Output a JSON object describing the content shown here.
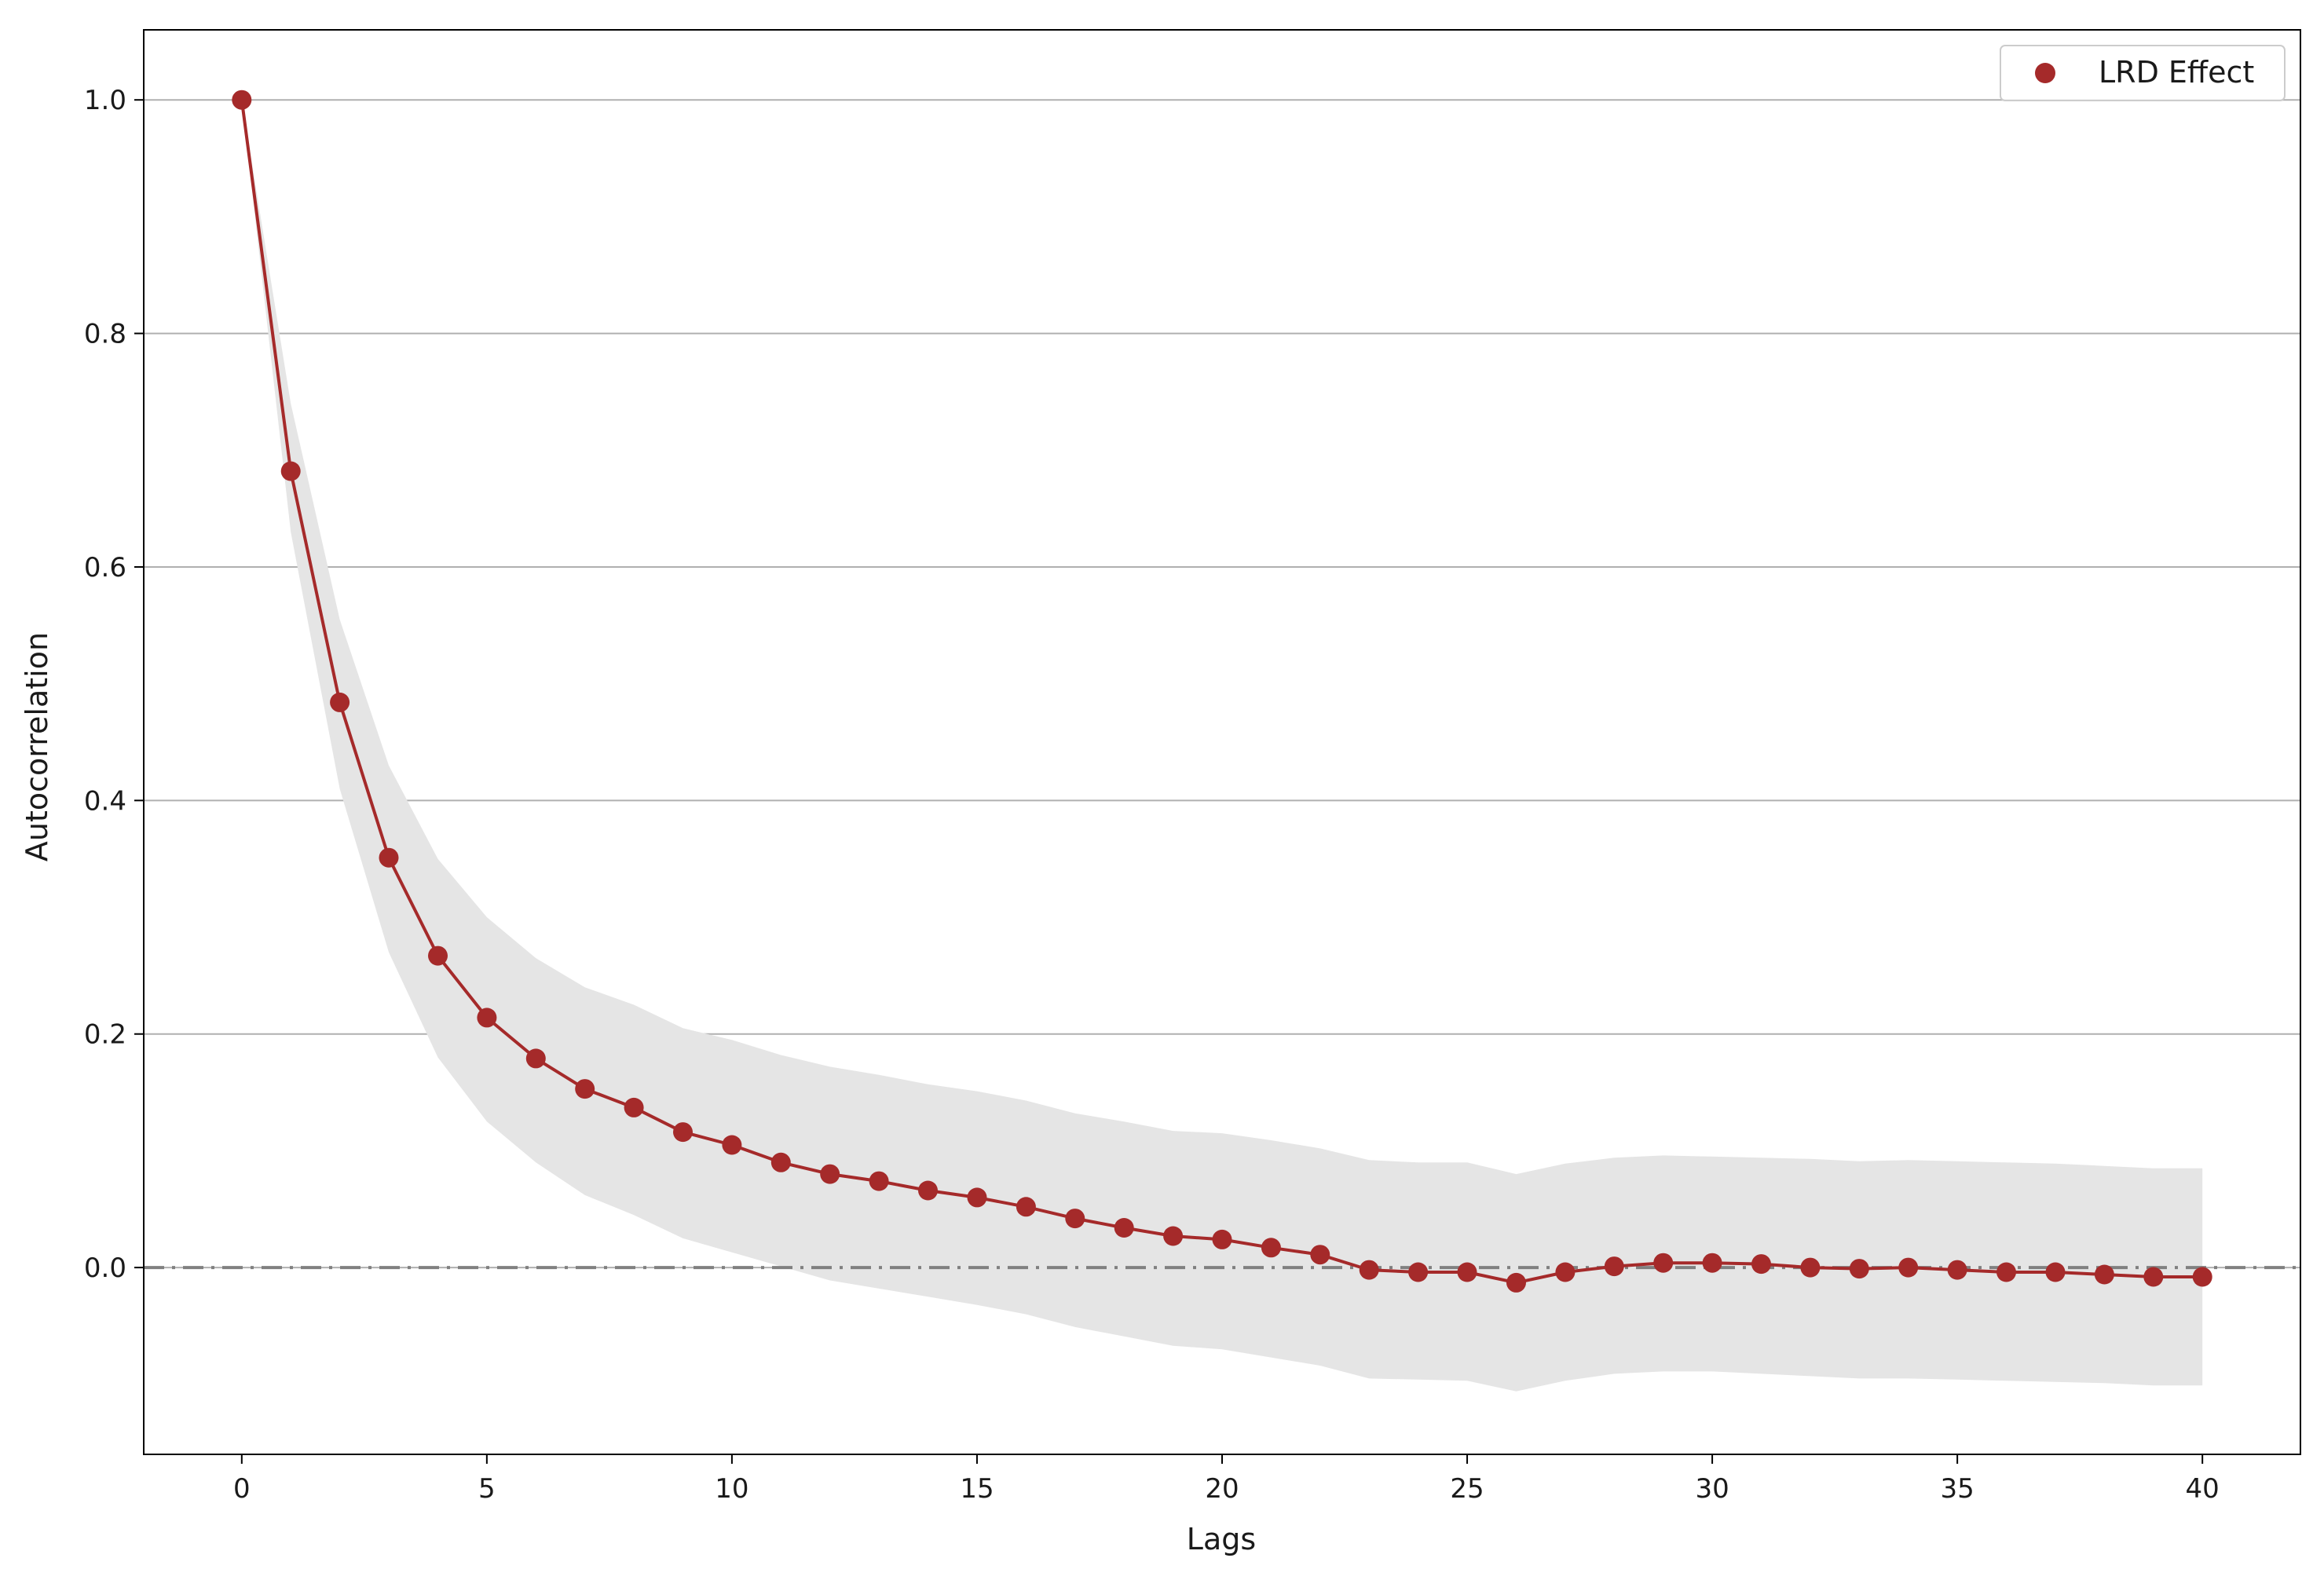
{
  "chart_data": {
    "type": "line",
    "title": "",
    "xlabel": "Lags",
    "ylabel": "Autocorrelation",
    "xlim": [
      -2,
      42
    ],
    "ylim": [
      -0.16,
      1.06
    ],
    "xticks": [
      0,
      5,
      10,
      15,
      20,
      25,
      30,
      35,
      40
    ],
    "xtick_labels": [
      "0",
      "5",
      "10",
      "15",
      "20",
      "25",
      "30",
      "35",
      "40"
    ],
    "yticks": [
      0.0,
      0.2,
      0.4,
      0.6,
      0.8,
      1.0
    ],
    "ytick_labels": [
      "0.0",
      "0.2",
      "0.4",
      "0.6",
      "0.8",
      "1.0"
    ],
    "grid": "horizontal",
    "legend_position": "top-right",
    "reference_line": {
      "y": 0.0,
      "style": "dash-dot",
      "color": "#808080"
    },
    "series": [
      {
        "name": "LRD Effect",
        "color": "#a52a2a",
        "marker": "circle",
        "x": [
          0,
          1,
          2,
          3,
          4,
          5,
          6,
          7,
          8,
          9,
          10,
          11,
          12,
          13,
          14,
          15,
          16,
          17,
          18,
          19,
          20,
          21,
          22,
          23,
          24,
          25,
          26,
          27,
          28,
          29,
          30,
          31,
          32,
          33,
          34,
          35,
          36,
          37,
          38,
          39,
          40
        ],
        "values": [
          1.0,
          0.682,
          0.484,
          0.351,
          0.267,
          0.214,
          0.179,
          0.153,
          0.137,
          0.116,
          0.105,
          0.09,
          0.08,
          0.074,
          0.066,
          0.06,
          0.052,
          0.042,
          0.034,
          0.027,
          0.024,
          0.017,
          0.011,
          -0.002,
          -0.004,
          -0.004,
          -0.013,
          -0.004,
          0.001,
          0.004,
          0.004,
          0.003,
          0.0,
          -0.001,
          0.0,
          -0.002,
          -0.004,
          -0.004,
          -0.006,
          -0.008,
          -0.008
        ]
      }
    ],
    "confidence_band": {
      "color": "#e5e5e5",
      "upper": [
        1.0,
        0.74,
        0.555,
        0.43,
        0.35,
        0.3,
        0.265,
        0.24,
        0.225,
        0.205,
        0.195,
        0.182,
        0.172,
        0.165,
        0.157,
        0.151,
        0.143,
        0.132,
        0.125,
        0.117,
        0.115,
        0.109,
        0.102,
        0.092,
        0.09,
        0.09,
        0.08,
        0.089,
        0.094,
        0.096,
        0.095,
        0.094,
        0.093,
        0.091,
        0.092,
        0.091,
        0.09,
        0.089,
        0.087,
        0.085,
        0.085
      ],
      "lower": [
        1.0,
        0.63,
        0.41,
        0.27,
        0.18,
        0.125,
        0.09,
        0.062,
        0.045,
        0.025,
        0.013,
        0.001,
        -0.011,
        -0.018,
        -0.025,
        -0.032,
        -0.04,
        -0.051,
        -0.059,
        -0.067,
        -0.07,
        -0.077,
        -0.084,
        -0.095,
        -0.096,
        -0.097,
        -0.106,
        -0.097,
        -0.091,
        -0.089,
        -0.089,
        -0.091,
        -0.093,
        -0.095,
        -0.095,
        -0.096,
        -0.097,
        -0.098,
        -0.099,
        -0.101,
        -0.101
      ]
    }
  }
}
